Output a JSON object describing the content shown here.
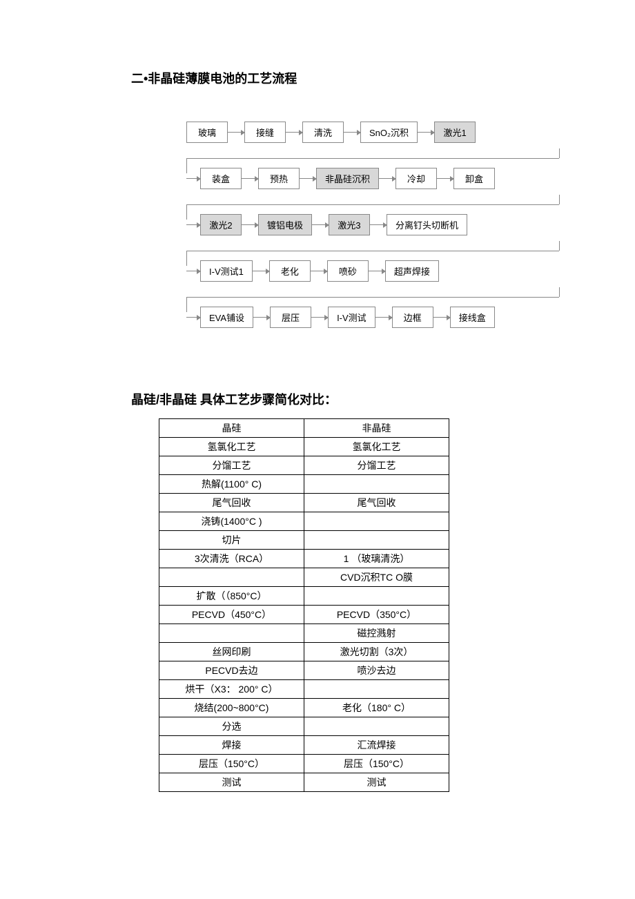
{
  "heading": "二•非晶硅薄膜电池的工艺流程",
  "subheading": "晶硅/非晶硅 具体工艺步骤简化对比：",
  "flowchart": {
    "box_border": "#888888",
    "shaded_bg": "#d8d8d8",
    "plain_bg": "#ffffff",
    "rows": [
      {
        "lead": false,
        "boxes": [
          {
            "label": "玻璃",
            "shaded": false
          },
          {
            "label": "接缝",
            "shaded": false
          },
          {
            "label": "清洗",
            "shaded": false
          },
          {
            "label": "SnO₂沉积",
            "shaded": false
          },
          {
            "label": "激光1",
            "shaded": true
          }
        ]
      },
      {
        "lead": true,
        "boxes": [
          {
            "label": "装盒",
            "shaded": false
          },
          {
            "label": "预热",
            "shaded": false
          },
          {
            "label": "非晶硅沉积",
            "shaded": true
          },
          {
            "label": "冷却",
            "shaded": false
          },
          {
            "label": "卸盒",
            "shaded": false
          }
        ]
      },
      {
        "lead": true,
        "boxes": [
          {
            "label": "激光2",
            "shaded": true
          },
          {
            "label": "镀铝电极",
            "shaded": true
          },
          {
            "label": "激光3",
            "shaded": true
          },
          {
            "label": "分离钉头切断机",
            "shaded": false
          }
        ]
      },
      {
        "lead": true,
        "boxes": [
          {
            "label": "I-V测试1",
            "shaded": false
          },
          {
            "label": "老化",
            "shaded": false
          },
          {
            "label": "喷砂",
            "shaded": false
          },
          {
            "label": "超声焊接",
            "shaded": false
          }
        ]
      },
      {
        "lead": true,
        "boxes": [
          {
            "label": "EVA铺设",
            "shaded": false
          },
          {
            "label": "层压",
            "shaded": false
          },
          {
            "label": "I-V测试",
            "shaded": false
          },
          {
            "label": "边框",
            "shaded": false
          },
          {
            "label": "接线盒",
            "shaded": false
          }
        ]
      }
    ]
  },
  "table": {
    "columns": [
      "晶硅",
      "非晶硅"
    ],
    "rows": [
      [
        "氢氯化工艺",
        "氢氯化工艺"
      ],
      [
        "分馏工艺",
        "分馏工艺"
      ],
      [
        "热解(1100° C)",
        ""
      ],
      [
        "尾气回收",
        "尾气回收"
      ],
      [
        "浇铸(1400°C )",
        ""
      ],
      [
        "切片",
        ""
      ],
      [
        "3次清洗（RCA）",
        "1 （玻璃清洗）"
      ],
      [
        "",
        "CVD沉积TC O膜"
      ],
      [
        "扩散（（850°C）",
        ""
      ],
      [
        "PECVD（450°C）",
        "PECVD（350°C）"
      ],
      [
        "",
        "磁控溅射"
      ],
      [
        "丝网印刷",
        "激光切割（3次）"
      ],
      [
        "PECVD去边",
        "喷沙去边"
      ],
      [
        "烘干（X3： 200° C）",
        ""
      ],
      [
        "烧结(200~800°C)",
        "老化（180° C）"
      ],
      [
        "分选",
        ""
      ],
      [
        "焊接",
        "汇流焊接"
      ],
      [
        "层压（150°C）",
        "层压（150°C）"
      ],
      [
        "测试",
        "测试"
      ]
    ]
  }
}
